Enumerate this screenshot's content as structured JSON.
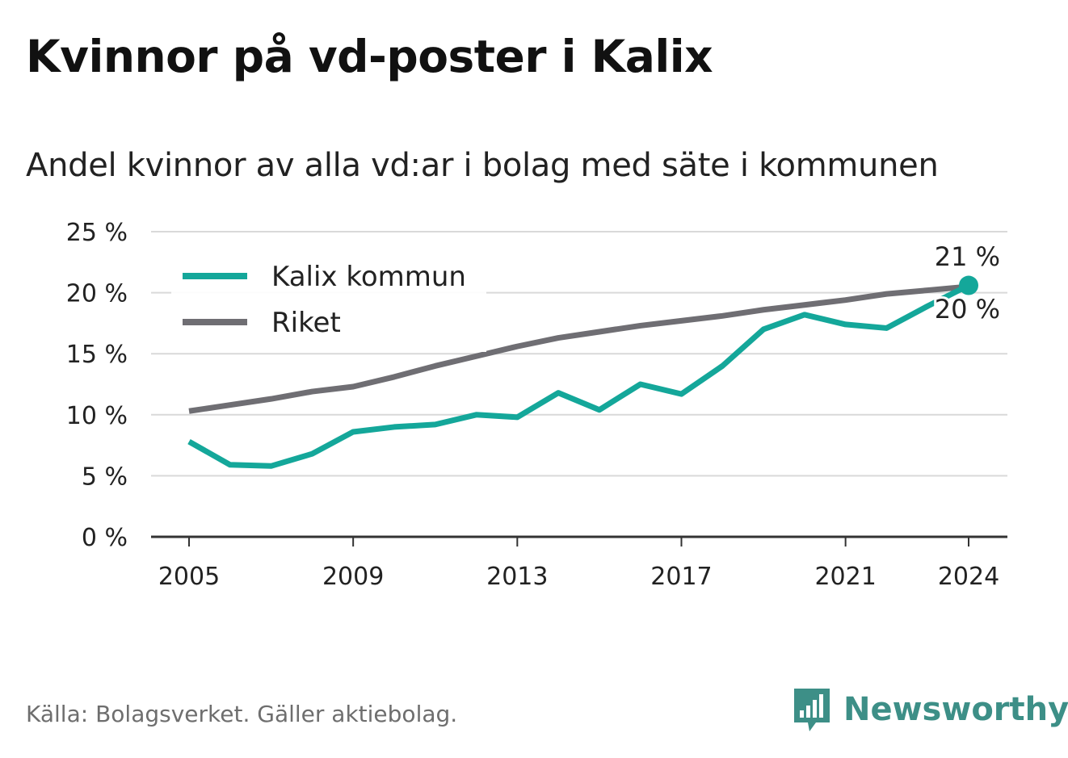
{
  "title": "Kvinnor på vd-poster i Kalix",
  "subtitle": "Andel kvinnor av alla vd:ar i bolag med säte i kommunen",
  "source": "Källa: Bolagsverket. Gäller aktiebolag.",
  "brand": {
    "name": "Newsworthy",
    "icon": "newsworthy-logo-icon",
    "color": "#3d8f87"
  },
  "chart_data": {
    "type": "line",
    "x": [
      2005,
      2006,
      2007,
      2008,
      2009,
      2010,
      2011,
      2012,
      2013,
      2014,
      2015,
      2016,
      2017,
      2018,
      2019,
      2020,
      2021,
      2022,
      2023,
      2024
    ],
    "series": [
      {
        "name": "Kalix kommun",
        "color": "#14a79a",
        "values": [
          7.8,
          5.9,
          5.8,
          6.8,
          8.6,
          9.0,
          9.2,
          10.0,
          9.8,
          11.8,
          10.4,
          12.5,
          11.7,
          14.0,
          17.0,
          18.2,
          17.4,
          17.1,
          18.9,
          20.6
        ]
      },
      {
        "name": "Riket",
        "color": "#6f6e73",
        "values": [
          10.3,
          10.8,
          11.3,
          11.9,
          12.3,
          13.1,
          14.0,
          14.8,
          15.6,
          16.3,
          16.8,
          17.3,
          17.7,
          18.1,
          18.6,
          19.0,
          19.4,
          19.9,
          20.2,
          20.5
        ]
      }
    ],
    "yticks": [
      0,
      5,
      10,
      15,
      20,
      25
    ],
    "ytick_labels": [
      "0 %",
      "5 %",
      "10 %",
      "15 %",
      "20 %",
      "25 %"
    ],
    "xticks": [
      2005,
      2009,
      2013,
      2017,
      2021,
      2024
    ],
    "xtick_labels": [
      "2005",
      "2009",
      "2013",
      "2017",
      "2021",
      "2024"
    ],
    "ylim": [
      0,
      25
    ],
    "xlim": [
      2005,
      2024
    ],
    "grid": true,
    "legend_position": "top-left",
    "end_labels": {
      "Kalix kommun": "21 %",
      "Riket": "20 %"
    },
    "xlabel": "",
    "ylabel": ""
  }
}
